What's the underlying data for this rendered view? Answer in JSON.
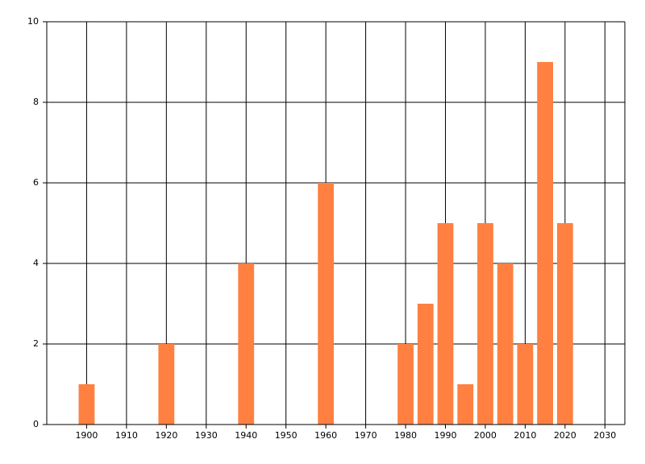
{
  "chart_data": {
    "type": "bar",
    "x": [
      1900,
      1920,
      1940,
      1960,
      1980,
      1985,
      1990,
      1995,
      2000,
      2005,
      2010,
      2015,
      2020
    ],
    "values": [
      1,
      2,
      4,
      6,
      2,
      3,
      5,
      1,
      5,
      4,
      2,
      9,
      5
    ],
    "color": "#ff8040",
    "xlim": [
      1890,
      2035
    ],
    "xticks": [
      1900,
      1910,
      1920,
      1930,
      1940,
      1950,
      1960,
      1970,
      1980,
      1990,
      2000,
      2010,
      2020,
      2030
    ],
    "ylim": [
      0,
      10
    ],
    "yticks": [
      0,
      2,
      4,
      6,
      8,
      10
    ],
    "grid": true
  }
}
